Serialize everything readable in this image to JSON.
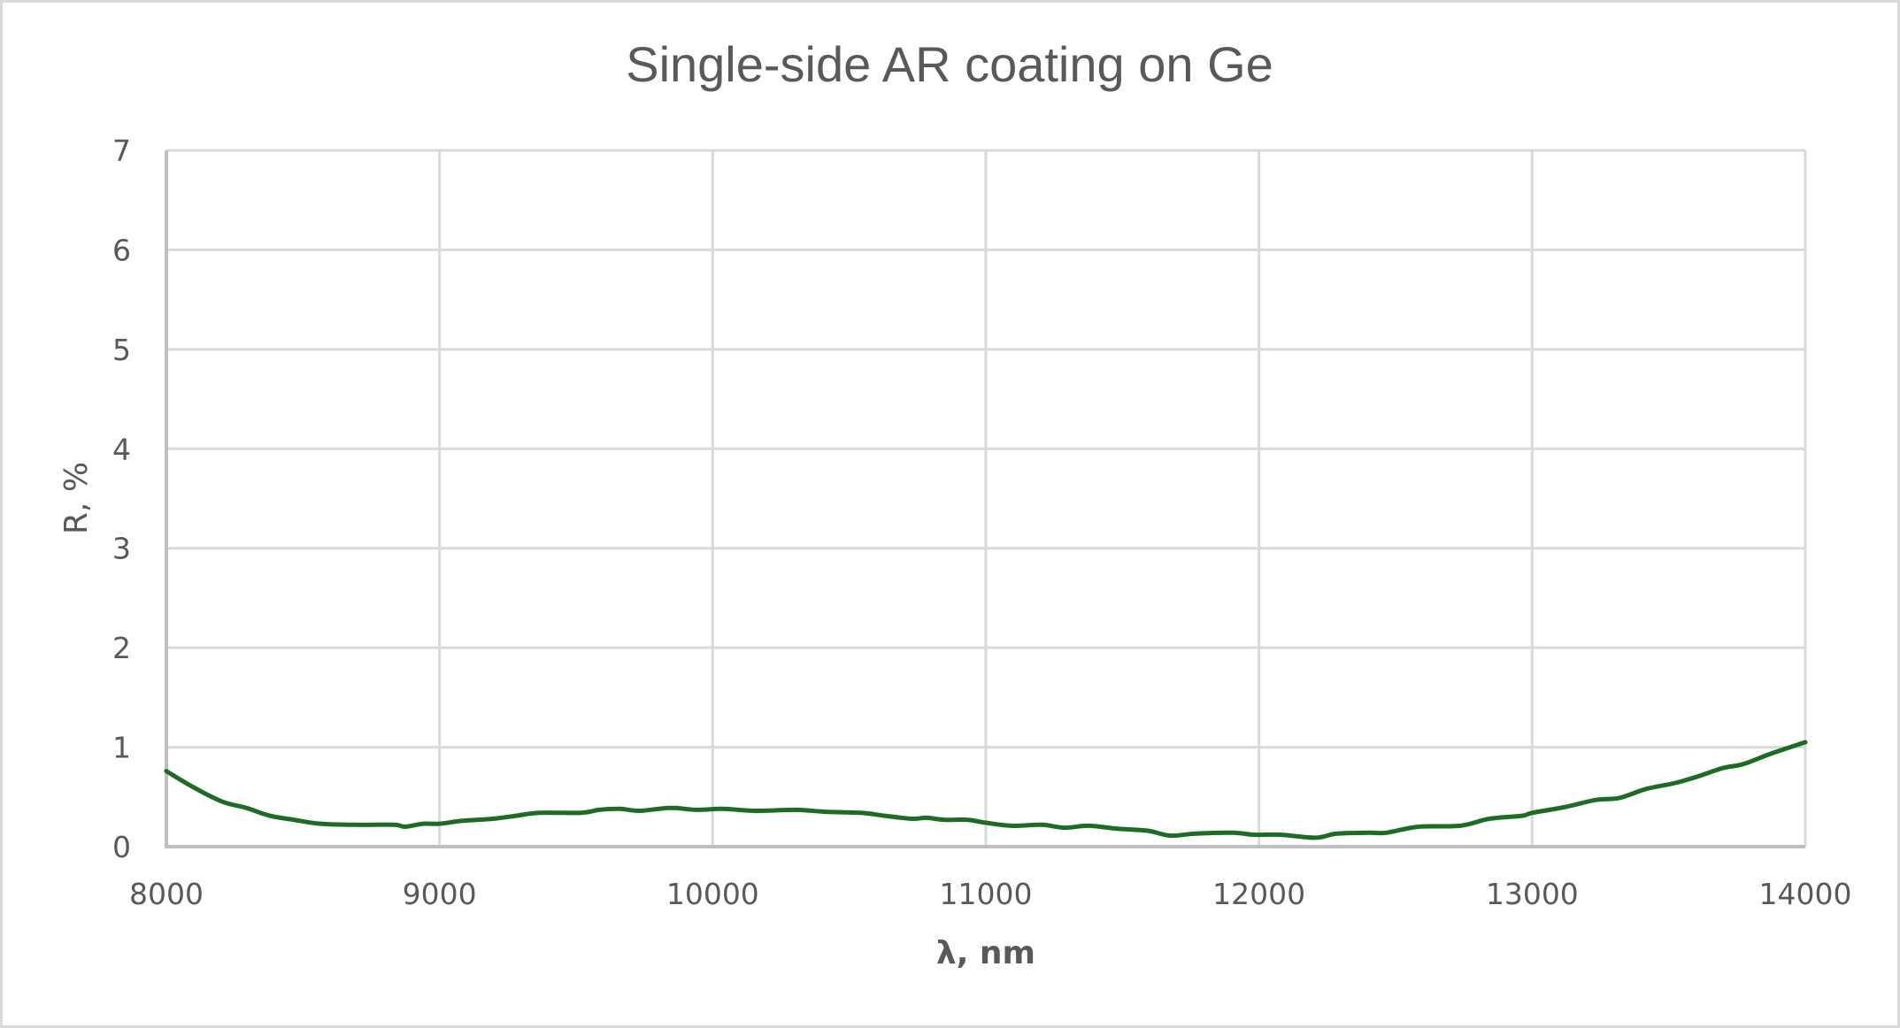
{
  "chart_data": {
    "type": "line",
    "title": "Single-side AR coating on Ge",
    "xlabel": "λ, nm",
    "ylabel": "R, %",
    "xlim": [
      8000,
      14000
    ],
    "ylim": [
      0,
      7
    ],
    "x_ticks": [
      "8000",
      "9000",
      "10000",
      "11000",
      "12000",
      "13000",
      "14000"
    ],
    "y_ticks": [
      "0",
      "1",
      "2",
      "3",
      "4",
      "5",
      "6",
      "7"
    ],
    "grid": true,
    "legend": null,
    "series": [
      {
        "name": "R",
        "color": "#1e6b24",
        "x": [
          8000,
          8097,
          8207,
          8292,
          8379,
          8466,
          8563,
          8693,
          8833,
          8874,
          8939,
          9000,
          9085,
          9195,
          9280,
          9367,
          9519,
          9584,
          9659,
          9733,
          9843,
          9940,
          10037,
          10154,
          10306,
          10414,
          10543,
          10630,
          10728,
          10783,
          10847,
          10932,
          11000,
          11094,
          11204,
          11288,
          11375,
          11482,
          11592,
          11676,
          11764,
          11903,
          11981,
          12078,
          12208,
          12283,
          12402,
          12467,
          12584,
          12736,
          12843,
          12963,
          13000,
          13124,
          13233,
          13320,
          13417,
          13524,
          13611,
          13698,
          13773,
          13870,
          14000
        ],
        "y": [
          0.76,
          0.6,
          0.45,
          0.39,
          0.31,
          0.27,
          0.23,
          0.22,
          0.22,
          0.2,
          0.23,
          0.23,
          0.26,
          0.28,
          0.31,
          0.34,
          0.34,
          0.37,
          0.38,
          0.36,
          0.39,
          0.37,
          0.38,
          0.36,
          0.37,
          0.35,
          0.34,
          0.31,
          0.28,
          0.29,
          0.27,
          0.27,
          0.24,
          0.21,
          0.22,
          0.19,
          0.21,
          0.18,
          0.16,
          0.11,
          0.13,
          0.14,
          0.12,
          0.12,
          0.09,
          0.13,
          0.14,
          0.14,
          0.2,
          0.21,
          0.28,
          0.31,
          0.34,
          0.4,
          0.47,
          0.49,
          0.58,
          0.64,
          0.71,
          0.79,
          0.83,
          0.93,
          1.05
        ]
      }
    ]
  },
  "colors": {
    "line": "#1e6b24",
    "grid": "#d9d9d9",
    "axis": "#bfbfbf",
    "text": "#595959",
    "border": "#d9d9d9"
  }
}
